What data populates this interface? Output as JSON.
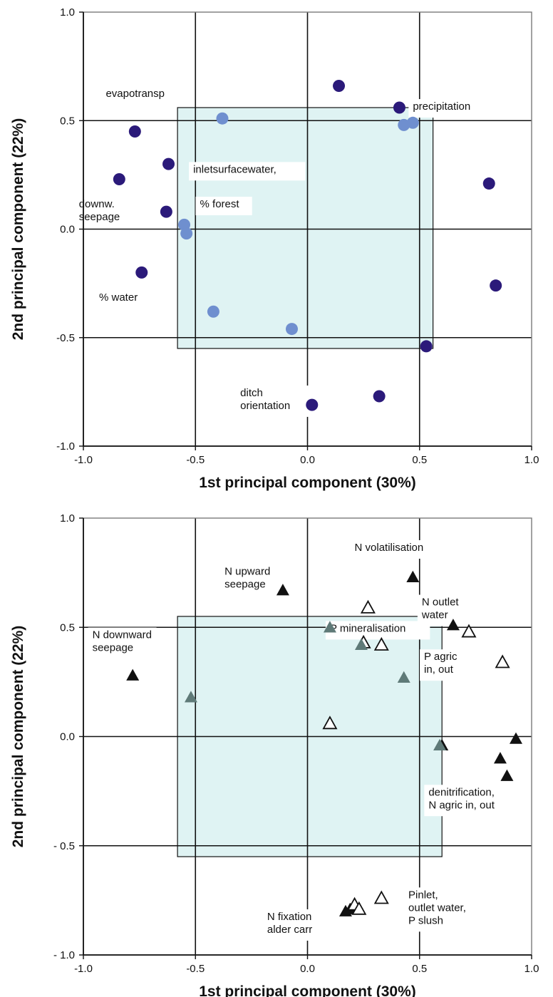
{
  "colors": {
    "point_dark": "#2b1a7a",
    "point_light": "#6f8fcf",
    "shade_fill": "#dff3f3",
    "shade_stroke": "#111111",
    "marker_black": "#111111",
    "marker_grey": "#5f7a78",
    "grid": "#111111"
  },
  "chart_data": [
    {
      "type": "scatter",
      "xlabel": "1st principal component (30%)",
      "ylabel": "2nd principal component (22%)",
      "xlim": [
        -1.0,
        1.0
      ],
      "ylim": [
        -1.0,
        1.0
      ],
      "x_ticks": [
        -1.0,
        -0.5,
        0.0,
        0.5,
        1.0
      ],
      "x_tick_labels": [
        "-1.0",
        "-0.5",
        "0.0",
        "0.5",
        "1.0"
      ],
      "y_ticks": [
        1.0,
        0.5,
        0.0,
        -0.5,
        -1.0
      ],
      "y_tick_labels": [
        "1.0",
        "0.5",
        "0.0",
        "-0.5",
        "-1.0"
      ],
      "grid": true,
      "shaded_region": {
        "x": [
          -0.58,
          0.56
        ],
        "y": [
          -0.55,
          0.56
        ]
      },
      "series": [
        {
          "marker": "circle-dark",
          "points": [
            {
              "x": -0.77,
              "y": 0.45
            },
            {
              "x": -0.84,
              "y": 0.23
            },
            {
              "x": -0.62,
              "y": 0.3
            },
            {
              "x": -0.63,
              "y": 0.08
            },
            {
              "x": -0.74,
              "y": -0.2
            },
            {
              "x": 0.14,
              "y": 0.66
            },
            {
              "x": 0.41,
              "y": 0.56
            },
            {
              "x": 0.81,
              "y": 0.21
            },
            {
              "x": 0.84,
              "y": -0.26
            },
            {
              "x": 0.53,
              "y": -0.54
            },
            {
              "x": 0.32,
              "y": -0.77
            },
            {
              "x": 0.02,
              "y": -0.81
            }
          ]
        },
        {
          "marker": "circle-light",
          "points": [
            {
              "x": -0.38,
              "y": 0.51
            },
            {
              "x": 0.43,
              "y": 0.48
            },
            {
              "x": 0.47,
              "y": 0.49
            },
            {
              "x": -0.55,
              "y": 0.02
            },
            {
              "x": -0.54,
              "y": -0.02
            },
            {
              "x": -0.42,
              "y": -0.38
            },
            {
              "x": -0.07,
              "y": -0.46
            }
          ]
        }
      ],
      "annotations": [
        {
          "lines": [
            "evapotransp"
          ],
          "x": -0.9,
          "y": 0.61
        },
        {
          "lines": [
            "precipitation"
          ],
          "x": 0.47,
          "y": 0.55
        },
        {
          "lines": [
            "inletsurfacewater,"
          ],
          "x": -0.51,
          "y": 0.26
        },
        {
          "lines": [
            "% forest"
          ],
          "x": -0.48,
          "y": 0.1
        },
        {
          "lines": [
            "downw.",
            "seepage"
          ],
          "x": -1.02,
          "y": 0.1
        },
        {
          "lines": [
            "% water"
          ],
          "x": -0.93,
          "y": -0.33
        },
        {
          "lines": [
            "ditch",
            "orientation"
          ],
          "x": -0.3,
          "y": -0.77
        }
      ]
    },
    {
      "type": "scatter",
      "xlabel": "1st principal component (30%)",
      "ylabel": "2nd principal component (22%)",
      "xlim": [
        -1.0,
        1.0
      ],
      "ylim": [
        -1.0,
        1.0
      ],
      "x_ticks": [
        -1.0,
        -0.5,
        0.0,
        0.5,
        1.0
      ],
      "x_tick_labels": [
        "-1.0",
        "-0.5",
        "0.0",
        "0.5",
        "1.0"
      ],
      "y_ticks": [
        1.0,
        0.5,
        0.0,
        -0.5,
        -1.0
      ],
      "y_tick_labels": [
        "1.0",
        "0.5",
        "0.0",
        "- 0.5",
        "- 1.0"
      ],
      "grid": true,
      "shaded_region": {
        "x": [
          -0.58,
          0.6
        ],
        "y": [
          -0.55,
          0.55
        ]
      },
      "series": [
        {
          "marker": "triangle-black",
          "points": [
            {
              "x": -0.78,
              "y": 0.28
            },
            {
              "x": -0.11,
              "y": 0.67
            },
            {
              "x": 0.47,
              "y": 0.73
            },
            {
              "x": 0.65,
              "y": 0.51
            },
            {
              "x": 0.6,
              "y": -0.04
            },
            {
              "x": 0.86,
              "y": -0.1
            },
            {
              "x": 0.93,
              "y": -0.01
            },
            {
              "x": 0.89,
              "y": -0.18
            },
            {
              "x": 0.17,
              "y": -0.8
            },
            {
              "x": 0.19,
              "y": -0.79
            }
          ]
        },
        {
          "marker": "triangle-open",
          "points": [
            {
              "x": 0.27,
              "y": 0.59
            },
            {
              "x": 0.25,
              "y": 0.43
            },
            {
              "x": 0.33,
              "y": 0.42
            },
            {
              "x": 0.72,
              "y": 0.48
            },
            {
              "x": 0.87,
              "y": 0.34
            },
            {
              "x": 0.1,
              "y": 0.06
            },
            {
              "x": 0.21,
              "y": -0.77
            },
            {
              "x": 0.23,
              "y": -0.79
            },
            {
              "x": 0.33,
              "y": -0.74
            }
          ]
        },
        {
          "marker": "triangle-grey",
          "points": [
            {
              "x": -0.52,
              "y": 0.18
            },
            {
              "x": 0.24,
              "y": 0.42
            },
            {
              "x": 0.43,
              "y": 0.27
            },
            {
              "x": 0.59,
              "y": -0.04
            },
            {
              "x": 0.1,
              "y": 0.5
            }
          ]
        }
      ],
      "annotations": [
        {
          "lines": [
            "N volatilisation"
          ],
          "x": 0.21,
          "y": 0.85
        },
        {
          "lines": [
            "N upward",
            "seepage"
          ],
          "x": -0.37,
          "y": 0.74
        },
        {
          "lines": [
            "N outlet",
            "water"
          ],
          "x": 0.51,
          "y": 0.6
        },
        {
          "lines": [
            "N downward",
            "seepage"
          ],
          "x": -0.96,
          "y": 0.45
        },
        {
          "lines": [
            "P mineralisation"
          ],
          "x": 0.1,
          "y": 0.48
        },
        {
          "lines": [
            "P agric",
            "in, out"
          ],
          "x": 0.52,
          "y": 0.35
        },
        {
          "lines": [
            "denitrification,",
            "N agric in, out"
          ],
          "x": 0.54,
          "y": -0.27
        },
        {
          "lines": [
            "Pinlet,",
            "outlet water,",
            "P slush"
          ],
          "x": 0.45,
          "y": -0.74
        },
        {
          "lines": [
            "N fixation",
            "alder carr"
          ],
          "x": -0.18,
          "y": -0.84
        }
      ]
    }
  ]
}
